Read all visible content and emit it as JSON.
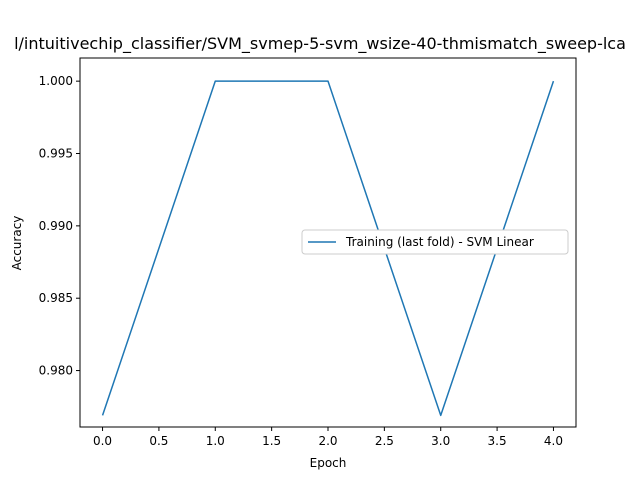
{
  "chart_data": {
    "type": "line",
    "title": "l/intuitivechip_classifier/SVM_svmep-5-svm_wsize-40-thmismatch_sweep-lca",
    "xlabel": "Epoch",
    "ylabel": "Accuracy",
    "xlim": [
      -0.2,
      4.2
    ],
    "ylim": [
      0.9761,
      1.0016
    ],
    "xticks": [
      0.0,
      0.5,
      1.0,
      1.5,
      2.0,
      2.5,
      3.0,
      3.5,
      4.0
    ],
    "xtick_labels": [
      "0.0",
      "0.5",
      "1.0",
      "1.5",
      "2.0",
      "2.5",
      "3.0",
      "3.5",
      "4.0"
    ],
    "yticks": [
      0.98,
      0.985,
      0.99,
      0.995,
      1.0
    ],
    "ytick_labels": [
      "0.980",
      "0.985",
      "0.990",
      "0.995",
      "1.000"
    ],
    "grid": false,
    "legend_position": "center-right",
    "series": [
      {
        "name": "Training (last fold) - SVM Linear",
        "color": "#1f77b4",
        "x": [
          0,
          1,
          2,
          3,
          4
        ],
        "y": [
          0.9769,
          1.0,
          1.0,
          0.9769,
          1.0
        ]
      }
    ]
  }
}
